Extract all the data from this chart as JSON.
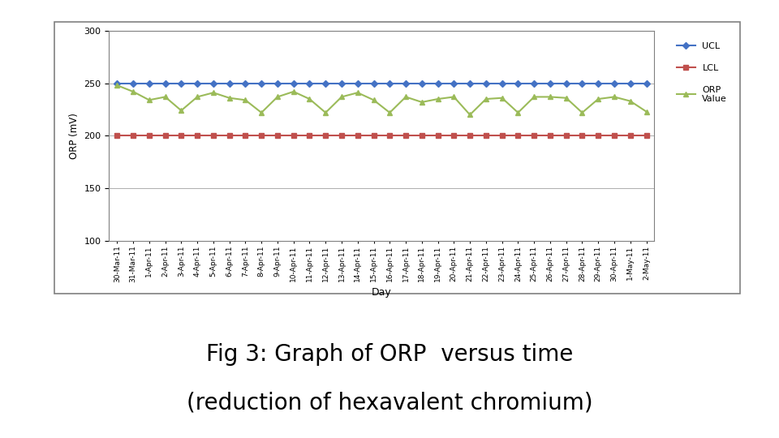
{
  "days": [
    "30-Mar-11",
    "31-Mar-11",
    "1-Apr-11",
    "2-Apr-11",
    "3-Apr-11",
    "4-Apr-11",
    "5-Apr-11",
    "6-Apr-11",
    "7-Apr-11",
    "8-Apr-11",
    "9-Apr-11",
    "10-Apr-11",
    "11-Apr-11",
    "12-Apr-11",
    "13-Apr-11",
    "14-Apr-11",
    "15-Apr-11",
    "16-Apr-11",
    "17-Apr-11",
    "18-Apr-11",
    "19-Apr-11",
    "20-Apr-11",
    "21-Apr-11",
    "22-Apr-11",
    "23-Apr-11",
    "24-Apr-11",
    "25-Apr-11",
    "26-Apr-11",
    "27-Apr-11",
    "28-Apr-11",
    "29-Apr-11",
    "30-Apr-11",
    "1-May-11",
    "2-May-11"
  ],
  "ucl_values": [
    250,
    250,
    250,
    250,
    250,
    250,
    250,
    250,
    250,
    250,
    250,
    250,
    250,
    250,
    250,
    250,
    250,
    250,
    250,
    250,
    250,
    250,
    250,
    250,
    250,
    250,
    250,
    250,
    250,
    250,
    250,
    250,
    250,
    250
  ],
  "lcl_values": [
    200,
    200,
    200,
    200,
    200,
    200,
    200,
    200,
    200,
    200,
    200,
    200,
    200,
    200,
    200,
    200,
    200,
    200,
    200,
    200,
    200,
    200,
    200,
    200,
    200,
    200,
    200,
    200,
    200,
    200,
    200,
    200,
    200,
    200
  ],
  "orp_values": [
    248,
    242,
    234,
    237,
    224,
    237,
    241,
    236,
    234,
    222,
    237,
    242,
    235,
    222,
    237,
    241,
    234,
    222,
    237,
    232,
    235,
    237,
    220,
    235,
    236,
    222,
    237,
    237,
    236,
    222,
    235,
    237,
    233,
    223
  ],
  "ucl_color": "#4472C4",
  "lcl_color": "#C0504D",
  "orp_color": "#9BBB59",
  "ylabel": "ORP (mV)",
  "xlabel": "Day",
  "ylim": [
    100,
    300
  ],
  "yticks": [
    100,
    150,
    200,
    250,
    300
  ],
  "caption_line1": "Fig 3: Graph of ORP  versus time",
  "caption_line2": "(reduction of hexavalent chromium)",
  "legend_ucl": "UCL",
  "legend_lcl": "LCL",
  "legend_orp": "ORP\nValue",
  "background_color": "#ffffff",
  "chart_bg": "#ffffff",
  "border_color": "#808080"
}
